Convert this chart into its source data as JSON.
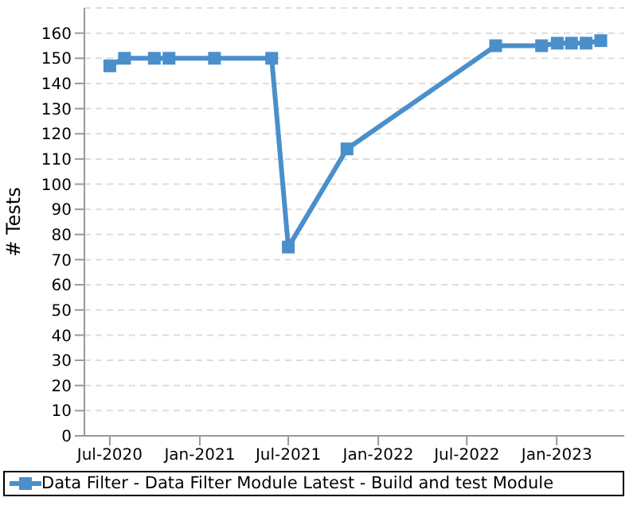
{
  "chart_data": {
    "type": "line",
    "ylabel": "# Tests",
    "x": [
      "2020-07-01",
      "2020-07-31",
      "2020-09-30",
      "2020-10-30",
      "2021-01-31",
      "2021-05-28",
      "2021-07-01",
      "2021-10-29",
      "2022-08-29",
      "2022-12-01",
      "2023-01-02",
      "2023-01-31",
      "2023-03-02",
      "2023-04-01"
    ],
    "series": [
      {
        "name": "Data Filter - Data Filter Module Latest - Build and test Module",
        "color": "#4a8fcb",
        "values": [
          147,
          150,
          150,
          150,
          150,
          150,
          75,
          114,
          155,
          155,
          156,
          156,
          156,
          157
        ]
      }
    ],
    "xlim": [
      "2020-05-10",
      "2023-05-19"
    ],
    "xticks": [
      {
        "value": "2020-07-01",
        "label": "Jul-2020"
      },
      {
        "value": "2021-01-01",
        "label": "Jan-2021"
      },
      {
        "value": "2021-07-01",
        "label": "Jul-2021"
      },
      {
        "value": "2022-01-01",
        "label": "Jan-2022"
      },
      {
        "value": "2022-07-01",
        "label": "Jul-2022"
      },
      {
        "value": "2023-01-01",
        "label": "Jan-2023"
      }
    ],
    "ylim": [
      0,
      170
    ],
    "yticks": [
      0,
      10,
      20,
      30,
      40,
      50,
      60,
      70,
      80,
      90,
      100,
      110,
      120,
      130,
      140,
      150,
      160
    ],
    "grid": "y",
    "legend": "bottom",
    "marker": "square",
    "line_style": "solid"
  }
}
